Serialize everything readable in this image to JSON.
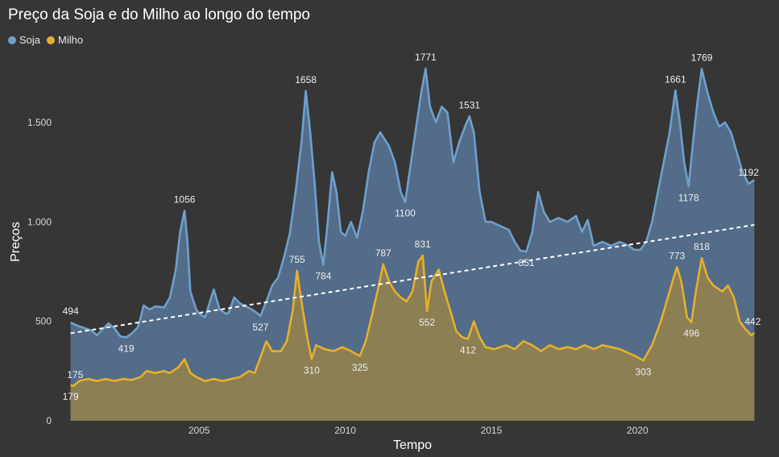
{
  "chart_data": {
    "type": "area",
    "title": "Preço da Soja e do Milho ao longo do tempo",
    "xlabel": "Tempo",
    "ylabel": "Preços",
    "xlim": [
      2000.5,
      2024.1
    ],
    "ylim": [
      0,
      1800
    ],
    "yticks": [
      0,
      500,
      1000,
      1500
    ],
    "ytick_labels": [
      "0",
      "500",
      "1.000",
      "1.500"
    ],
    "xticks": [
      2005,
      2010,
      2015,
      2020
    ],
    "xtick_labels": [
      "2005",
      "2010",
      "2015",
      "2020"
    ],
    "legend": {
      "position": "top-left"
    },
    "trendline": {
      "series": "Soja",
      "style": "dashed",
      "color": "#ffffff",
      "start": [
        2000.6,
        440
      ],
      "end": [
        2024.0,
        985
      ]
    },
    "series": [
      {
        "name": "Soja",
        "color": "#6ea0cc",
        "fill": "#55708e",
        "points": [
          [
            2000.6,
            494
          ],
          [
            2000.8,
            480
          ],
          [
            2001.0,
            470
          ],
          [
            2001.3,
            455
          ],
          [
            2001.5,
            430
          ],
          [
            2001.7,
            460
          ],
          [
            2001.9,
            490
          ],
          [
            2002.1,
            465
          ],
          [
            2002.3,
            425
          ],
          [
            2002.5,
            419
          ],
          [
            2002.7,
            440
          ],
          [
            2002.9,
            470
          ],
          [
            2003.0,
            520
          ],
          [
            2003.1,
            580
          ],
          [
            2003.3,
            560
          ],
          [
            2003.5,
            575
          ],
          [
            2003.8,
            570
          ],
          [
            2004.0,
            620
          ],
          [
            2004.2,
            760
          ],
          [
            2004.35,
            950
          ],
          [
            2004.5,
            1056
          ],
          [
            2004.6,
            900
          ],
          [
            2004.7,
            650
          ],
          [
            2004.9,
            560
          ],
          [
            2005.0,
            540
          ],
          [
            2005.2,
            520
          ],
          [
            2005.5,
            660
          ],
          [
            2005.7,
            560
          ],
          [
            2005.9,
            540
          ],
          [
            2006.0,
            540
          ],
          [
            2006.2,
            620
          ],
          [
            2006.4,
            590
          ],
          [
            2006.6,
            575
          ],
          [
            2006.8,
            560
          ],
          [
            2007.0,
            540
          ],
          [
            2007.1,
            527
          ],
          [
            2007.3,
            600
          ],
          [
            2007.5,
            680
          ],
          [
            2007.7,
            720
          ],
          [
            2007.9,
            820
          ],
          [
            2008.1,
            940
          ],
          [
            2008.3,
            1150
          ],
          [
            2008.5,
            1400
          ],
          [
            2008.65,
            1658
          ],
          [
            2008.8,
            1450
          ],
          [
            2008.95,
            1200
          ],
          [
            2009.1,
            900
          ],
          [
            2009.25,
            784
          ],
          [
            2009.4,
            1000
          ],
          [
            2009.55,
            1250
          ],
          [
            2009.7,
            1150
          ],
          [
            2009.85,
            950
          ],
          [
            2010.0,
            930
          ],
          [
            2010.2,
            1000
          ],
          [
            2010.4,
            920
          ],
          [
            2010.6,
            1050
          ],
          [
            2010.8,
            1250
          ],
          [
            2011.0,
            1400
          ],
          [
            2011.2,
            1450
          ],
          [
            2011.5,
            1380
          ],
          [
            2011.7,
            1300
          ],
          [
            2011.9,
            1150
          ],
          [
            2012.05,
            1100
          ],
          [
            2012.2,
            1250
          ],
          [
            2012.4,
            1450
          ],
          [
            2012.6,
            1650
          ],
          [
            2012.75,
            1771
          ],
          [
            2012.9,
            1580
          ],
          [
            2013.1,
            1500
          ],
          [
            2013.3,
            1580
          ],
          [
            2013.5,
            1550
          ],
          [
            2013.7,
            1300
          ],
          [
            2013.9,
            1400
          ],
          [
            2014.1,
            1480
          ],
          [
            2014.25,
            1531
          ],
          [
            2014.4,
            1450
          ],
          [
            2014.6,
            1150
          ],
          [
            2014.8,
            1000
          ],
          [
            2015.0,
            1000
          ],
          [
            2015.3,
            980
          ],
          [
            2015.6,
            960
          ],
          [
            2015.8,
            900
          ],
          [
            2016.0,
            855
          ],
          [
            2016.2,
            851
          ],
          [
            2016.4,
            950
          ],
          [
            2016.6,
            1150
          ],
          [
            2016.8,
            1050
          ],
          [
            2017.0,
            1000
          ],
          [
            2017.3,
            1020
          ],
          [
            2017.6,
            1000
          ],
          [
            2017.9,
            1030
          ],
          [
            2018.1,
            950
          ],
          [
            2018.3,
            1010
          ],
          [
            2018.5,
            880
          ],
          [
            2018.8,
            900
          ],
          [
            2019.1,
            880
          ],
          [
            2019.4,
            900
          ],
          [
            2019.7,
            880
          ],
          [
            2019.9,
            860
          ],
          [
            2020.1,
            860
          ],
          [
            2020.3,
            900
          ],
          [
            2020.5,
            1000
          ],
          [
            2020.7,
            1150
          ],
          [
            2020.9,
            1300
          ],
          [
            2021.1,
            1450
          ],
          [
            2021.3,
            1661
          ],
          [
            2021.45,
            1500
          ],
          [
            2021.6,
            1300
          ],
          [
            2021.75,
            1178
          ],
          [
            2021.9,
            1400
          ],
          [
            2022.05,
            1600
          ],
          [
            2022.2,
            1769
          ],
          [
            2022.4,
            1650
          ],
          [
            2022.6,
            1550
          ],
          [
            2022.8,
            1480
          ],
          [
            2023.0,
            1500
          ],
          [
            2023.2,
            1450
          ],
          [
            2023.4,
            1350
          ],
          [
            2023.6,
            1250
          ],
          [
            2023.8,
            1192
          ],
          [
            2024.0,
            1210
          ]
        ],
        "labels": [
          {
            "x": 2000.6,
            "y": 494,
            "text": "494"
          },
          {
            "x": 2002.5,
            "y": 419,
            "text": "419"
          },
          {
            "x": 2004.5,
            "y": 1056,
            "text": "1056"
          },
          {
            "x": 2007.1,
            "y": 527,
            "text": "527"
          },
          {
            "x": 2008.65,
            "y": 1658,
            "text": "1658"
          },
          {
            "x": 2009.25,
            "y": 784,
            "text": "784"
          },
          {
            "x": 2012.05,
            "y": 1100,
            "text": "1100"
          },
          {
            "x": 2012.75,
            "y": 1771,
            "text": "1771"
          },
          {
            "x": 2014.25,
            "y": 1531,
            "text": "1531"
          },
          {
            "x": 2016.2,
            "y": 851,
            "text": "851"
          },
          {
            "x": 2021.3,
            "y": 1661,
            "text": "1661"
          },
          {
            "x": 2021.75,
            "y": 1178,
            "text": "1178"
          },
          {
            "x": 2022.2,
            "y": 1769,
            "text": "1769"
          },
          {
            "x": 2023.8,
            "y": 1192,
            "text": "1192"
          }
        ]
      },
      {
        "name": "Milho",
        "color": "#e6b02c",
        "fill": "#8e8150",
        "points": [
          [
            2000.6,
            179
          ],
          [
            2000.7,
            175
          ],
          [
            2000.9,
            200
          ],
          [
            2001.2,
            210
          ],
          [
            2001.5,
            200
          ],
          [
            2001.8,
            210
          ],
          [
            2002.1,
            200
          ],
          [
            2002.4,
            210
          ],
          [
            2002.7,
            205
          ],
          [
            2003.0,
            220
          ],
          [
            2003.2,
            250
          ],
          [
            2003.5,
            240
          ],
          [
            2003.8,
            250
          ],
          [
            2004.0,
            240
          ],
          [
            2004.3,
            270
          ],
          [
            2004.5,
            310
          ],
          [
            2004.7,
            240
          ],
          [
            2004.9,
            220
          ],
          [
            2005.2,
            200
          ],
          [
            2005.5,
            210
          ],
          [
            2005.8,
            200
          ],
          [
            2006.1,
            210
          ],
          [
            2006.4,
            220
          ],
          [
            2006.7,
            250
          ],
          [
            2006.9,
            240
          ],
          [
            2007.1,
            320
          ],
          [
            2007.3,
            400
          ],
          [
            2007.5,
            350
          ],
          [
            2007.8,
            350
          ],
          [
            2008.0,
            400
          ],
          [
            2008.2,
            550
          ],
          [
            2008.35,
            755
          ],
          [
            2008.5,
            600
          ],
          [
            2008.7,
            420
          ],
          [
            2008.85,
            310
          ],
          [
            2009.0,
            380
          ],
          [
            2009.3,
            360
          ],
          [
            2009.6,
            350
          ],
          [
            2009.9,
            370
          ],
          [
            2010.2,
            350
          ],
          [
            2010.5,
            325
          ],
          [
            2010.7,
            400
          ],
          [
            2010.9,
            520
          ],
          [
            2011.1,
            650
          ],
          [
            2011.3,
            787
          ],
          [
            2011.5,
            700
          ],
          [
            2011.7,
            650
          ],
          [
            2011.9,
            620
          ],
          [
            2012.1,
            600
          ],
          [
            2012.3,
            650
          ],
          [
            2012.5,
            800
          ],
          [
            2012.65,
            831
          ],
          [
            2012.8,
            552
          ],
          [
            2012.95,
            700
          ],
          [
            2013.2,
            760
          ],
          [
            2013.4,
            650
          ],
          [
            2013.6,
            550
          ],
          [
            2013.8,
            450
          ],
          [
            2014.0,
            420
          ],
          [
            2014.2,
            412
          ],
          [
            2014.4,
            500
          ],
          [
            2014.6,
            420
          ],
          [
            2014.8,
            370
          ],
          [
            2015.1,
            360
          ],
          [
            2015.5,
            380
          ],
          [
            2015.8,
            360
          ],
          [
            2016.1,
            400
          ],
          [
            2016.4,
            380
          ],
          [
            2016.7,
            350
          ],
          [
            2017.0,
            380
          ],
          [
            2017.3,
            360
          ],
          [
            2017.6,
            370
          ],
          [
            2017.9,
            360
          ],
          [
            2018.2,
            380
          ],
          [
            2018.5,
            360
          ],
          [
            2018.8,
            380
          ],
          [
            2019.1,
            370
          ],
          [
            2019.4,
            360
          ],
          [
            2019.7,
            340
          ],
          [
            2020.0,
            320
          ],
          [
            2020.2,
            303
          ],
          [
            2020.5,
            380
          ],
          [
            2020.8,
            500
          ],
          [
            2021.0,
            600
          ],
          [
            2021.2,
            700
          ],
          [
            2021.35,
            773
          ],
          [
            2021.5,
            700
          ],
          [
            2021.7,
            520
          ],
          [
            2021.85,
            496
          ],
          [
            2022.0,
            650
          ],
          [
            2022.2,
            818
          ],
          [
            2022.4,
            720
          ],
          [
            2022.6,
            680
          ],
          [
            2022.9,
            650
          ],
          [
            2023.1,
            680
          ],
          [
            2023.3,
            620
          ],
          [
            2023.5,
            500
          ],
          [
            2023.7,
            460
          ],
          [
            2023.9,
            430
          ],
          [
            2024.0,
            442
          ]
        ],
        "labels": [
          {
            "x": 2000.6,
            "y": 179,
            "text": "179"
          },
          {
            "x": 2000.7,
            "y": 175,
            "text": "175"
          },
          {
            "x": 2008.35,
            "y": 755,
            "text": "755"
          },
          {
            "x": 2008.85,
            "y": 310,
            "text": "310"
          },
          {
            "x": 2010.5,
            "y": 325,
            "text": "325"
          },
          {
            "x": 2011.3,
            "y": 787,
            "text": "787"
          },
          {
            "x": 2012.65,
            "y": 831,
            "text": "831"
          },
          {
            "x": 2012.8,
            "y": 552,
            "text": "552"
          },
          {
            "x": 2014.2,
            "y": 412,
            "text": "412"
          },
          {
            "x": 2020.2,
            "y": 303,
            "text": "303"
          },
          {
            "x": 2021.35,
            "y": 773,
            "text": "773"
          },
          {
            "x": 2021.85,
            "y": 496,
            "text": "496"
          },
          {
            "x": 2022.2,
            "y": 818,
            "text": "818"
          },
          {
            "x": 2024.0,
            "y": 442,
            "text": "442"
          }
        ]
      }
    ]
  },
  "colors": {
    "background": "#363636",
    "text": "#ffffff",
    "tick": "#d8d8d8",
    "label": "#eeeeee"
  }
}
